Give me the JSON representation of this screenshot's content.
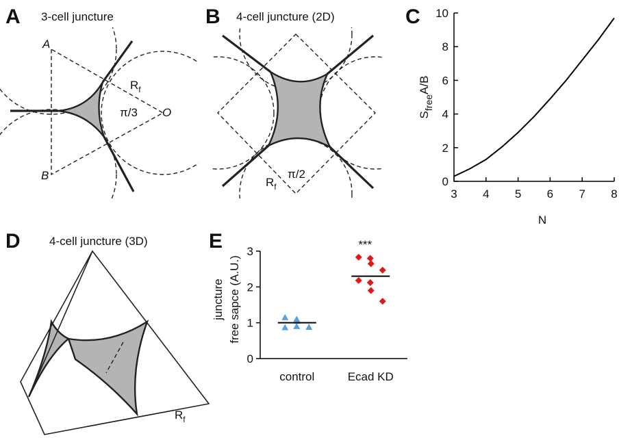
{
  "panels": {
    "a": {
      "letter": "A",
      "title": "3-cell juncture",
      "vertex_a": "A",
      "vertex_b": "B",
      "vertex_o": "O",
      "radius": {
        "main": "R",
        "sub": "f"
      },
      "angle": "π/3"
    },
    "b": {
      "letter": "B",
      "title": "4-cell juncture (2D)",
      "radius": {
        "main": "R",
        "sub": "f"
      },
      "angle": "π/2"
    },
    "c": {
      "letter": "C"
    },
    "d": {
      "letter": "D",
      "title": "4-cell juncture (3D)",
      "radius": {
        "main": "R",
        "sub": "f"
      }
    },
    "e": {
      "letter": "E"
    }
  },
  "chart_data": [
    {
      "type": "line",
      "ylabel": {
        "main": "S",
        "sub": "free",
        "rest": "A/B"
      },
      "xlabel": "N",
      "x": [
        3,
        3.5,
        4,
        4.5,
        5,
        5.5,
        6,
        6.5,
        7,
        7.5,
        8
      ],
      "values": [
        0.3,
        0.75,
        1.3,
        2.05,
        2.9,
        3.85,
        4.9,
        6.0,
        7.2,
        8.4,
        9.7
      ],
      "color": "#000000",
      "xlim": [
        3,
        8
      ],
      "xticks": [
        3,
        4,
        5,
        6,
        7,
        8
      ],
      "ylim": [
        0,
        10
      ],
      "yticks": [
        0,
        2,
        4,
        6,
        8,
        10
      ]
    },
    {
      "type": "scatter",
      "ylabel": [
        "juncture",
        "free sapce (A.U.)"
      ],
      "annotation": "***",
      "categories": [
        "control",
        "Ecad KD"
      ],
      "series": [
        {
          "name": "control",
          "color": "#5aa0e0",
          "marker": "triangle",
          "values": [
            1.15,
            1.1,
            1.05,
            0.88,
            0.87,
            0.9
          ],
          "mean": 1.0
        },
        {
          "name": "Ecad KD",
          "color": "#e01818",
          "marker": "diamond",
          "values": [
            2.83,
            2.8,
            2.65,
            2.47,
            2.18,
            2.12,
            1.9,
            1.6
          ],
          "mean": 2.3
        }
      ],
      "ylim": [
        0,
        3
      ],
      "yticks": [
        0,
        1,
        2,
        3
      ]
    }
  ]
}
